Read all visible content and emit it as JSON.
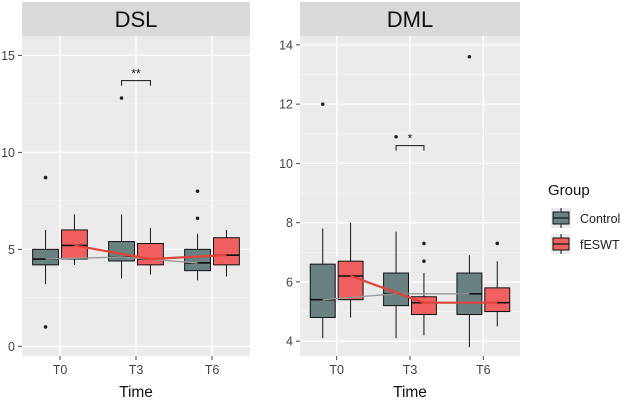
{
  "colors": {
    "panel_bg": "#ebebeb",
    "strip_bg": "#d9d9d9",
    "grid": "#ffffff",
    "control": "#6b8080",
    "feswt": "#f06060",
    "control_line": "#9a9a9a",
    "feswt_line": "#e2433a",
    "outlier": "#222222"
  },
  "legend": {
    "title": "Group",
    "items": [
      {
        "label": "Control",
        "group": "control"
      },
      {
        "label": "fESWT",
        "group": "feswt"
      }
    ]
  },
  "chart_data": [
    {
      "type": "box",
      "title": "DSL",
      "xlabel": "Time",
      "ylabel": "",
      "categories": [
        "T0",
        "T3",
        "T6"
      ],
      "ylim": [
        -0.5,
        16
      ],
      "yticks": [
        0,
        5,
        10,
        15
      ],
      "legend_position": "right",
      "series": [
        {
          "name": "Control",
          "boxes": [
            {
              "min": 3.2,
              "q1": 4.2,
              "median": 4.5,
              "q3": 5.0,
              "max": 6.0,
              "outliers": [
                8.7,
                1.0
              ]
            },
            {
              "min": 3.5,
              "q1": 4.4,
              "median": 4.6,
              "q3": 5.4,
              "max": 6.8,
              "outliers": [
                12.8
              ]
            },
            {
              "min": 3.4,
              "q1": 3.9,
              "median": 4.3,
              "q3": 5.0,
              "max": 5.8,
              "outliers": [
                8.0,
                6.6
              ]
            }
          ],
          "trend": [
            4.5,
            4.6,
            4.3
          ]
        },
        {
          "name": "fESWT",
          "boxes": [
            {
              "min": 4.2,
              "q1": 4.5,
              "median": 5.2,
              "q3": 6.0,
              "max": 6.8,
              "outliers": []
            },
            {
              "min": 3.7,
              "q1": 4.2,
              "median": 4.5,
              "q3": 5.3,
              "max": 6.1,
              "outliers": []
            },
            {
              "min": 3.6,
              "q1": 4.2,
              "median": 4.7,
              "q3": 5.6,
              "max": 6.0,
              "outliers": []
            }
          ],
          "trend": [
            5.2,
            4.5,
            4.7
          ]
        }
      ],
      "annotations": [
        {
          "text": "**",
          "at": "T3",
          "y": 13.7
        }
      ]
    },
    {
      "type": "box",
      "title": "DML",
      "xlabel": "Time",
      "ylabel": "",
      "categories": [
        "T0",
        "T3",
        "T6"
      ],
      "ylim": [
        3.5,
        14.3
      ],
      "yticks": [
        4,
        6,
        8,
        10,
        12,
        14
      ],
      "legend_position": "right",
      "series": [
        {
          "name": "Control",
          "boxes": [
            {
              "min": 4.1,
              "q1": 4.8,
              "median": 5.4,
              "q3": 6.6,
              "max": 7.8,
              "outliers": [
                12.0
              ]
            },
            {
              "min": 4.1,
              "q1": 5.2,
              "median": 5.6,
              "q3": 6.3,
              "max": 7.7,
              "outliers": [
                10.9
              ]
            },
            {
              "min": 3.8,
              "q1": 4.9,
              "median": 5.6,
              "q3": 6.3,
              "max": 6.9,
              "outliers": [
                13.6
              ]
            }
          ],
          "trend": [
            5.4,
            5.6,
            5.6
          ]
        },
        {
          "name": "fESWT",
          "boxes": [
            {
              "min": 4.8,
              "q1": 5.4,
              "median": 6.2,
              "q3": 6.7,
              "max": 8.0,
              "outliers": []
            },
            {
              "min": 4.2,
              "q1": 4.9,
              "median": 5.3,
              "q3": 5.5,
              "max": 6.3,
              "outliers": [
                7.3,
                6.7
              ]
            },
            {
              "min": 4.5,
              "q1": 5.0,
              "median": 5.3,
              "q3": 5.8,
              "max": 6.7,
              "outliers": [
                7.3
              ]
            }
          ],
          "trend": [
            6.2,
            5.3,
            5.3
          ]
        }
      ],
      "annotations": [
        {
          "text": "*",
          "at": "T3",
          "y": 10.6
        }
      ]
    }
  ]
}
